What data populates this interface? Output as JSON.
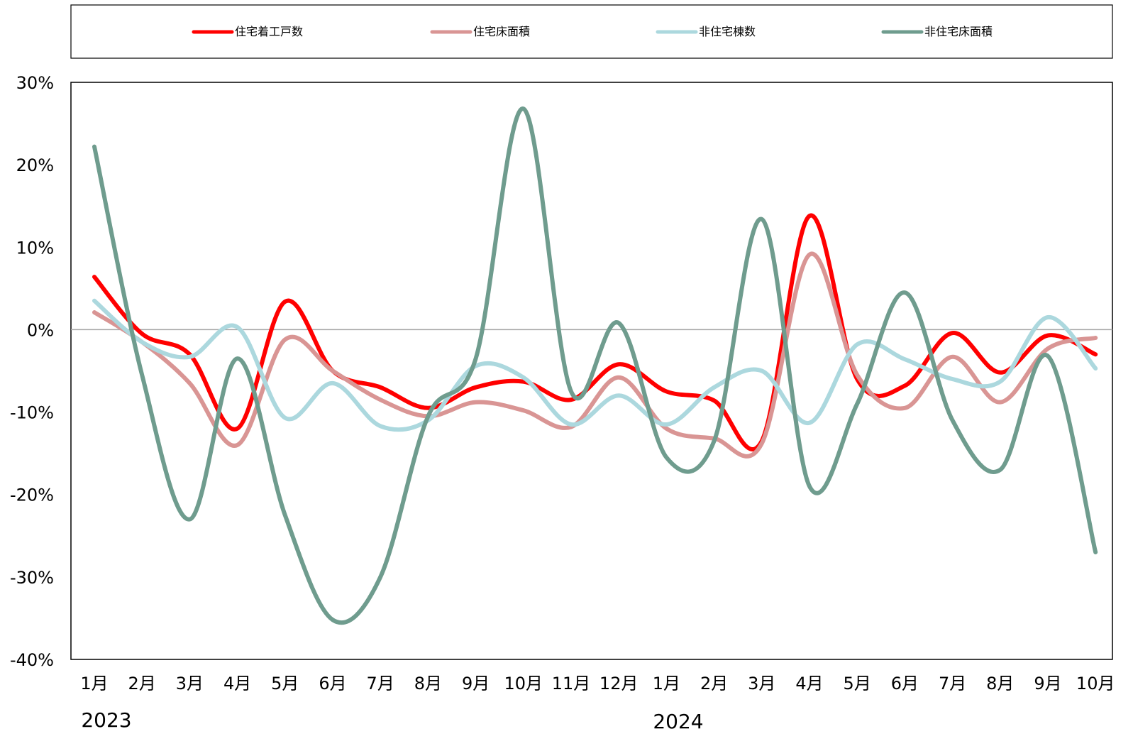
{
  "chart_data": {
    "type": "line",
    "title": "",
    "xlabel": "",
    "ylabel": "",
    "ylim": [
      -40,
      30
    ],
    "y_ticks": [
      30,
      20,
      10,
      0,
      -10,
      -20,
      -30,
      -40
    ],
    "y_tick_labels": [
      "30%",
      "20%",
      "10%",
      "0%",
      "-10%",
      "-20%",
      "-30%",
      "-40%"
    ],
    "categories": [
      "1月",
      "2月",
      "3月",
      "4月",
      "5月",
      "6月",
      "7月",
      "8月",
      "9月",
      "10月",
      "11月",
      "12月",
      "1月",
      "2月",
      "3月",
      "4月",
      "5月",
      "6月",
      "7月",
      "8月",
      "9月",
      "10月"
    ],
    "years": [
      {
        "label": "2023"
      },
      {
        "label": "2024"
      }
    ],
    "legend_position": "top",
    "grid": false,
    "series": [
      {
        "name": "住宅着工戸数",
        "color": "#ff0000",
        "values": [
          6.4,
          -0.5,
          -3.0,
          -12.0,
          3.4,
          -5.0,
          -7.0,
          -9.5,
          -7.0,
          -6.3,
          -8.5,
          -4.2,
          -7.5,
          -8.6,
          -13.5,
          13.8,
          -6.0,
          -6.8,
          -0.4,
          -5.2,
          -0.7,
          -3.0
        ]
      },
      {
        "name": "住宅床面積",
        "color": "#d99594",
        "values": [
          2.1,
          -1.5,
          -6.5,
          -14.0,
          -1.2,
          -5.0,
          -8.5,
          -10.5,
          -8.8,
          -9.8,
          -11.8,
          -5.8,
          -12.0,
          -13.2,
          -13.8,
          9.1,
          -5.5,
          -9.5,
          -3.3,
          -8.8,
          -2.3,
          -1.0
        ]
      },
      {
        "name": "非住宅棟数",
        "color": "#acd8de",
        "values": [
          3.5,
          -1.5,
          -3.3,
          0.3,
          -10.7,
          -6.5,
          -11.7,
          -11.0,
          -4.4,
          -5.8,
          -11.5,
          -8.0,
          -11.5,
          -7.0,
          -5.0,
          -11.3,
          -1.8,
          -3.6,
          -6.0,
          -6.3,
          1.5,
          -4.7
        ]
      },
      {
        "name": "非住宅床面積",
        "color": "#6f9c8e",
        "values": [
          22.2,
          -5.5,
          -23.0,
          -3.5,
          -22.5,
          -35.2,
          -30.0,
          -10.5,
          -3.5,
          26.8,
          -7.5,
          0.8,
          -15.5,
          -13.5,
          13.4,
          -19.0,
          -9.0,
          4.5,
          -11.0,
          -17.0,
          -3.2,
          -27.0
        ]
      }
    ]
  }
}
